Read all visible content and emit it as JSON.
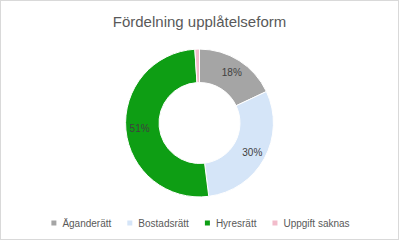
{
  "chart_data": {
    "type": "pie",
    "title": "Fördelning upplåtelseform",
    "categories": [
      "Äganderätt",
      "Bostadsrätt",
      "Hyresrätt",
      "Uppgift saknas"
    ],
    "values": [
      18,
      30,
      51,
      1
    ],
    "value_labels": [
      "18%",
      "30%",
      "51%",
      null
    ],
    "colors": [
      "#a5a5a5",
      "#d5e5f8",
      "#0e9e14",
      "#f2bccb"
    ],
    "data_labels": true,
    "legend": "bottom"
  }
}
